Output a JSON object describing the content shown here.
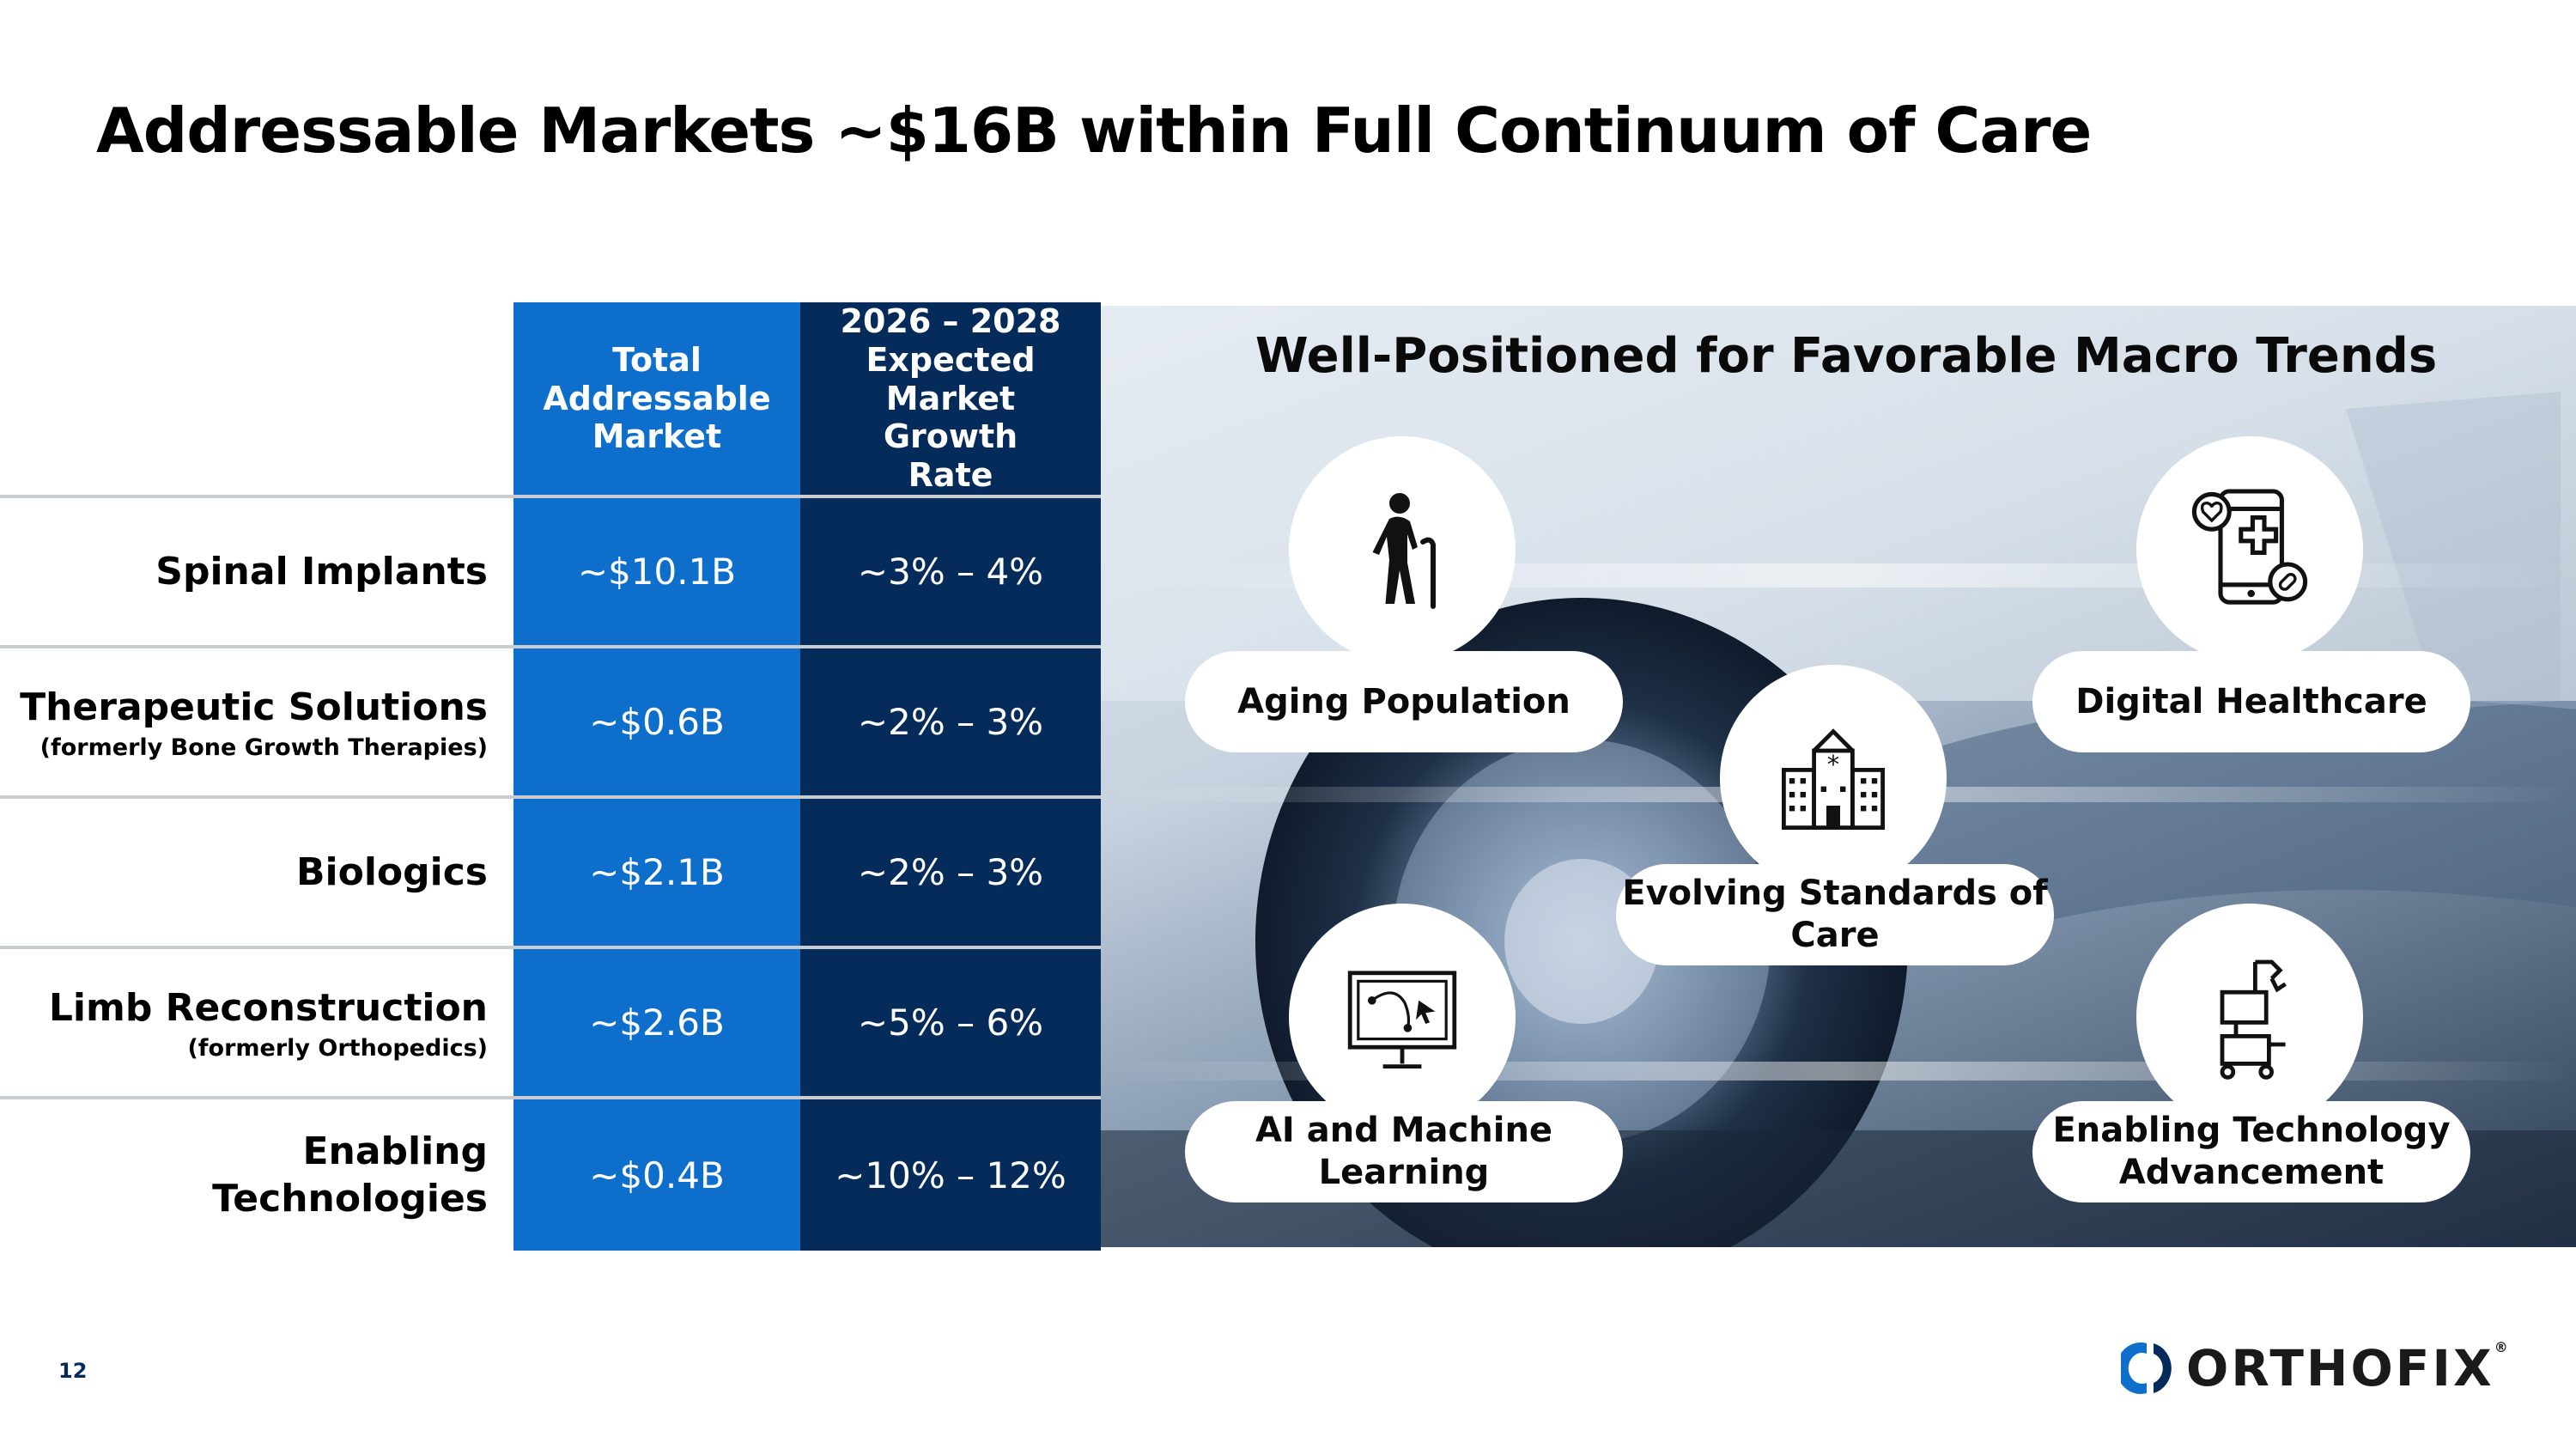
{
  "title": "Addressable Markets ~$16B within Full Continuum of Care",
  "table": {
    "headers": [
      "Total Addressable Market",
      "2026 – 2028 Expected Market Growth Rate"
    ],
    "rows": [
      {
        "label": "Spinal Implants",
        "sub": "",
        "tam": "~$10.1B",
        "growth": "~3% – 4%"
      },
      {
        "label": "Therapeutic Solutions",
        "sub": "(formerly Bone Growth Therapies)",
        "tam": "~$0.6B",
        "growth": "~2% – 3%"
      },
      {
        "label": "Biologics",
        "sub": "",
        "tam": "~$2.1B",
        "growth": "~2% – 3%"
      },
      {
        "label": "Limb Reconstruction",
        "sub": "(formerly Orthopedics)",
        "tam": "~$2.6B",
        "growth": "~5% – 6%"
      },
      {
        "label": "Enabling Technologies",
        "sub": "",
        "tam": "~$0.4B",
        "growth": "~10% – 12%"
      }
    ]
  },
  "trends": {
    "title": "Well-Positioned for Favorable Macro Trends",
    "items": [
      {
        "label": "Aging Population",
        "icon": "elderly-person-cane-icon"
      },
      {
        "label": "Digital Healthcare",
        "icon": "mobile-health-app-icon"
      },
      {
        "label": "Evolving Standards of Care",
        "icon": "hospital-building-icon"
      },
      {
        "label": "AI and Machine Learning",
        "icon": "monitor-ai-cursor-icon"
      },
      {
        "label": "Enabling Technology Advancement",
        "icon": "robotic-cart-icon"
      }
    ]
  },
  "footer": {
    "page_number": "12",
    "logo": "ORTHOFIX",
    "logo_mark": "®"
  },
  "colors": {
    "primary_blue": "#0d6fcb",
    "navy": "#042b59"
  }
}
